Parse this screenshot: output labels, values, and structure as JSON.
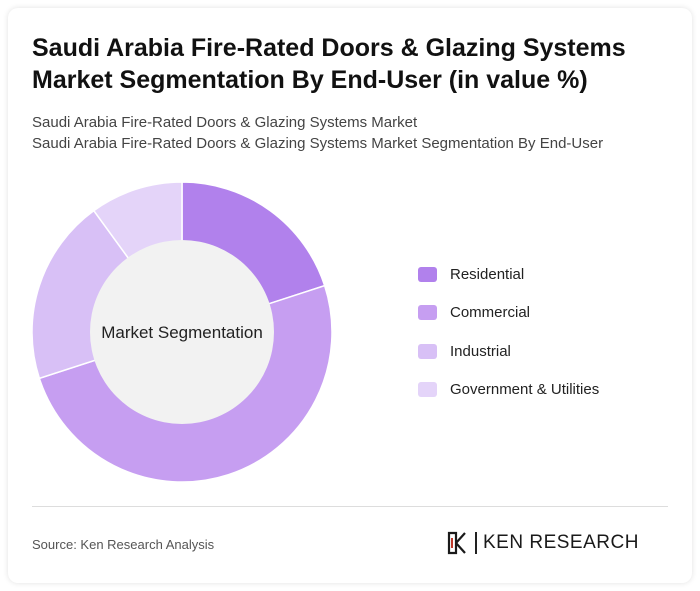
{
  "title": "Saudi Arabia Fire-Rated Doors & Glazing Systems Market Segmentation By End-User (in value %)",
  "subtitle_lines": [
    "Saudi Arabia Fire-Rated Doors & Glazing Systems Market",
    "Saudi Arabia Fire-Rated Doors & Glazing Systems Market Segmentation By End-User"
  ],
  "chart_data": {
    "type": "pie",
    "center_label": "Market Segmentation",
    "categories": [
      "Residential",
      "Commercial",
      "Industrial",
      "Government & Utilities"
    ],
    "values": [
      20,
      50,
      20,
      10
    ],
    "colors": [
      "#b181ec",
      "#c69ef1",
      "#d8c0f6",
      "#e4d4f9"
    ],
    "legend_position": "right"
  },
  "source": "Source: Ken Research Analysis",
  "logo_text": "KEN RESEARCH"
}
